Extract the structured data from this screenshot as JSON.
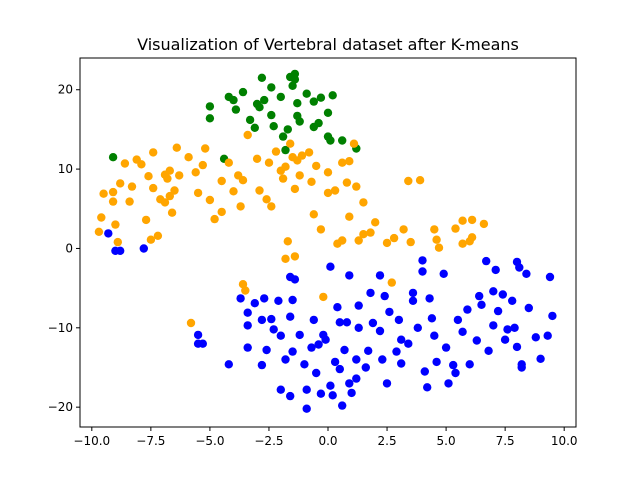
{
  "chart_data": {
    "type": "scatter",
    "title": "Visualization of Vertebral dataset after K-means",
    "xlabel": "",
    "ylabel": "",
    "xlim": [
      -10.5,
      10.5
    ],
    "ylim": [
      -22.5,
      24
    ],
    "x_ticks": [
      -10.0,
      -7.5,
      -5.0,
      -2.5,
      0.0,
      2.5,
      5.0,
      7.5,
      10.0
    ],
    "x_tick_labels": [
      "−10.0",
      "−7.5",
      "−5.0",
      "−2.5",
      "0.0",
      "2.5",
      "5.0",
      "7.5",
      "10.0"
    ],
    "y_ticks": [
      -20,
      -10,
      0,
      10,
      20
    ],
    "y_tick_labels": [
      "−20",
      "−10",
      "0",
      "10",
      "20"
    ],
    "grid": false,
    "legend": "none",
    "series": [
      {
        "color": "#008000",
        "points": [
          [
            -9.1,
            11.5
          ],
          [
            -5.0,
            17.9
          ],
          [
            -5.0,
            16.4
          ],
          [
            -4.4,
            11.3
          ],
          [
            -4.2,
            19.1
          ],
          [
            -4.0,
            18.7
          ],
          [
            -3.9,
            17.5
          ],
          [
            -3.6,
            19.7
          ],
          [
            -3.3,
            16.2
          ],
          [
            -3.1,
            15.2
          ],
          [
            -3.0,
            18.2
          ],
          [
            -2.9,
            17.8
          ],
          [
            -2.8,
            21.5
          ],
          [
            -2.7,
            18.7
          ],
          [
            -2.4,
            20.3
          ],
          [
            -2.4,
            16.8
          ],
          [
            -2.3,
            15.4
          ],
          [
            -2.0,
            19.1
          ],
          [
            -1.9,
            14.1
          ],
          [
            -1.8,
            12.4
          ],
          [
            -1.7,
            15.0
          ],
          [
            -1.6,
            21.6
          ],
          [
            -1.5,
            20.5
          ],
          [
            -1.4,
            21.3
          ],
          [
            -1.4,
            22.0
          ],
          [
            -1.3,
            18.3
          ],
          [
            -1.3,
            16.7
          ],
          [
            -1.2,
            16.0
          ],
          [
            -0.9,
            19.5
          ],
          [
            -0.6,
            18.5
          ],
          [
            -0.6,
            15.3
          ],
          [
            -0.4,
            15.8
          ],
          [
            -0.3,
            19.0
          ],
          [
            0.0,
            14.1
          ],
          [
            0.0,
            17.1
          ],
          [
            0.1,
            13.6
          ],
          [
            0.6,
            13.6
          ],
          [
            1.2,
            12.6
          ],
          [
            0.2,
            19.3
          ]
        ]
      },
      {
        "color": "#ffa500",
        "points": [
          [
            -9.7,
            2.1
          ],
          [
            -9.6,
            3.9
          ],
          [
            -9.5,
            6.9
          ],
          [
            -9.1,
            7.1
          ],
          [
            -9.1,
            5.9
          ],
          [
            -9.0,
            3.0
          ],
          [
            -8.9,
            0.8
          ],
          [
            -8.8,
            8.2
          ],
          [
            -8.6,
            10.7
          ],
          [
            -8.4,
            5.9
          ],
          [
            -8.3,
            7.8
          ],
          [
            -8.1,
            11.2
          ],
          [
            -7.9,
            10.6
          ],
          [
            -7.7,
            3.6
          ],
          [
            -7.6,
            9.1
          ],
          [
            -7.5,
            1.1
          ],
          [
            -7.4,
            7.6
          ],
          [
            -7.4,
            12.1
          ],
          [
            -7.2,
            1.6
          ],
          [
            -7.1,
            6.2
          ],
          [
            -6.9,
            5.8
          ],
          [
            -6.8,
            8.8
          ],
          [
            -6.7,
            9.8
          ],
          [
            -6.7,
            6.6
          ],
          [
            -6.6,
            4.5
          ],
          [
            -6.5,
            7.3
          ],
          [
            -6.4,
            12.7
          ],
          [
            -6.3,
            9.2
          ],
          [
            -5.9,
            11.5
          ],
          [
            -5.6,
            9.6
          ],
          [
            -5.5,
            7.0
          ],
          [
            -5.3,
            10.5
          ],
          [
            -5.2,
            12.6
          ],
          [
            -5.0,
            6.1
          ],
          [
            -4.8,
            3.7
          ],
          [
            -4.5,
            4.6
          ],
          [
            -4.5,
            8.5
          ],
          [
            -4.2,
            10.8
          ],
          [
            -4.0,
            7.2
          ],
          [
            -3.8,
            9.2
          ],
          [
            -3.7,
            5.3
          ],
          [
            -3.6,
            8.6
          ],
          [
            -3.4,
            14.3
          ],
          [
            -3.0,
            11.3
          ],
          [
            -2.9,
            7.3
          ],
          [
            -2.6,
            6.2
          ],
          [
            -2.5,
            10.8
          ],
          [
            -2.4,
            5.3
          ],
          [
            -2.2,
            12.2
          ],
          [
            -2.0,
            9.8
          ],
          [
            -1.9,
            8.8
          ],
          [
            -1.8,
            10.3
          ],
          [
            -1.7,
            0.9
          ],
          [
            -1.6,
            13.2
          ],
          [
            -1.5,
            11.5
          ],
          [
            -1.4,
            7.5
          ],
          [
            -1.3,
            11.1
          ],
          [
            -1.2,
            9.2
          ],
          [
            -1.1,
            11.7
          ],
          [
            -0.8,
            12.1
          ],
          [
            -0.7,
            8.4
          ],
          [
            -0.5,
            10.4
          ],
          [
            -0.3,
            2.4
          ],
          [
            0.0,
            9.6
          ],
          [
            0.0,
            7.0
          ],
          [
            0.3,
            7.3
          ],
          [
            0.4,
            0.6
          ],
          [
            0.6,
            1.0
          ],
          [
            0.6,
            10.8
          ],
          [
            0.8,
            8.3
          ],
          [
            0.9,
            4.0
          ],
          [
            0.9,
            11.0
          ],
          [
            1.1,
            13.2
          ],
          [
            1.2,
            7.8
          ],
          [
            1.3,
            1.0
          ],
          [
            1.5,
            5.8
          ],
          [
            1.5,
            1.8
          ],
          [
            1.8,
            2.0
          ],
          [
            2.0,
            3.3
          ],
          [
            2.5,
            0.7
          ],
          [
            2.8,
            1.3
          ],
          [
            3.2,
            2.4
          ],
          [
            3.4,
            8.5
          ],
          [
            3.5,
            0.8
          ],
          [
            3.9,
            8.6
          ],
          [
            4.5,
            2.4
          ],
          [
            4.6,
            1.1
          ],
          [
            4.7,
            0.1
          ],
          [
            5.4,
            2.5
          ],
          [
            5.7,
            3.5
          ],
          [
            5.7,
            0.6
          ],
          [
            6.0,
            0.9
          ],
          [
            6.1,
            3.6
          ],
          [
            6.1,
            1.4
          ],
          [
            6.6,
            3.1
          ],
          [
            -5.8,
            -9.4
          ],
          [
            -3.6,
            -4.5
          ],
          [
            -3.5,
            -5.3
          ],
          [
            -1.8,
            -1.3
          ],
          [
            -1.4,
            -1.0
          ],
          [
            -0.2,
            -6.1
          ],
          [
            2.7,
            -4.3
          ],
          [
            -0.6,
            4.3
          ],
          [
            -6.9,
            9.3
          ]
        ]
      },
      {
        "color": "#0000ff",
        "points": [
          [
            -9.3,
            1.9
          ],
          [
            -9.0,
            -0.3
          ],
          [
            -8.8,
            -0.3
          ],
          [
            -7.8,
            0.0
          ],
          [
            -5.5,
            -10.9
          ],
          [
            -5.5,
            -12.0
          ],
          [
            -5.3,
            -12.0
          ],
          [
            -4.2,
            -14.6
          ],
          [
            -3.7,
            -6.3
          ],
          [
            -3.4,
            -8.1
          ],
          [
            -3.4,
            -12.5
          ],
          [
            -3.1,
            -6.9
          ],
          [
            -2.8,
            -9.0
          ],
          [
            -2.8,
            -14.7
          ],
          [
            -2.7,
            -6.3
          ],
          [
            -2.6,
            -12.8
          ],
          [
            -2.4,
            -8.9
          ],
          [
            -2.3,
            -10.2
          ],
          [
            -2.1,
            -6.6
          ],
          [
            -2.0,
            -17.8
          ],
          [
            -2.0,
            -11.0
          ],
          [
            -1.8,
            -14.0
          ],
          [
            -1.6,
            -8.6
          ],
          [
            -1.6,
            -18.6
          ],
          [
            -1.6,
            -3.6
          ],
          [
            -1.5,
            -13.0
          ],
          [
            -1.5,
            -6.5
          ],
          [
            -1.4,
            -3.9
          ],
          [
            -1.2,
            -10.9
          ],
          [
            -1.0,
            -14.6
          ],
          [
            -0.9,
            -20.2
          ],
          [
            -0.9,
            -17.8
          ],
          [
            -0.7,
            -12.5
          ],
          [
            -0.6,
            -9.0
          ],
          [
            -0.5,
            -15.7
          ],
          [
            -0.4,
            -12.1
          ],
          [
            -0.3,
            -18.3
          ],
          [
            -0.2,
            -10.9
          ],
          [
            -0.1,
            -11.5
          ],
          [
            0.1,
            -17.3
          ],
          [
            0.1,
            -2.3
          ],
          [
            0.2,
            -18.5
          ],
          [
            0.3,
            -14.3
          ],
          [
            0.4,
            -7.4
          ],
          [
            0.5,
            -9.3
          ],
          [
            0.5,
            -15.2
          ],
          [
            0.6,
            -19.8
          ],
          [
            0.7,
            -12.8
          ],
          [
            0.8,
            -9.3
          ],
          [
            0.9,
            -17.0
          ],
          [
            0.9,
            -3.4
          ],
          [
            1.0,
            -18.2
          ],
          [
            1.2,
            -16.4
          ],
          [
            1.2,
            -14.0
          ],
          [
            1.3,
            -7.2
          ],
          [
            1.3,
            -10.0
          ],
          [
            1.6,
            -15.0
          ],
          [
            1.7,
            -12.9
          ],
          [
            1.8,
            -5.6
          ],
          [
            1.9,
            -9.4
          ],
          [
            2.2,
            -10.4
          ],
          [
            2.3,
            -14.0
          ],
          [
            2.5,
            -17.0
          ],
          [
            2.4,
            -6.0
          ],
          [
            2.6,
            -8.0
          ],
          [
            2.9,
            -13.0
          ],
          [
            3.0,
            -9.0
          ],
          [
            3.1,
            -11.5
          ],
          [
            3.1,
            -14.5
          ],
          [
            3.4,
            -12.0
          ],
          [
            3.6,
            -5.6
          ],
          [
            3.6,
            -6.6
          ],
          [
            3.8,
            -10.0
          ],
          [
            4.0,
            -1.5
          ],
          [
            4.0,
            -2.9
          ],
          [
            4.1,
            -15.5
          ],
          [
            4.2,
            -17.5
          ],
          [
            4.3,
            -6.3
          ],
          [
            4.4,
            -8.8
          ],
          [
            4.5,
            -11.0
          ],
          [
            4.6,
            -14.3
          ],
          [
            4.9,
            -3.2
          ],
          [
            5.0,
            -12.5
          ],
          [
            5.1,
            -17.0
          ],
          [
            5.3,
            -14.7
          ],
          [
            5.4,
            -15.7
          ],
          [
            5.5,
            -9.0
          ],
          [
            5.7,
            -10.5
          ],
          [
            5.9,
            -7.7
          ],
          [
            6.0,
            -14.6
          ],
          [
            6.3,
            -11.6
          ],
          [
            6.4,
            -6.0
          ],
          [
            6.5,
            -7.1
          ],
          [
            6.7,
            -1.6
          ],
          [
            6.8,
            -12.9
          ],
          [
            7.0,
            -5.4
          ],
          [
            7.0,
            -9.7
          ],
          [
            7.1,
            -2.7
          ],
          [
            7.2,
            -7.9
          ],
          [
            7.4,
            -5.8
          ],
          [
            7.5,
            -11.5
          ],
          [
            7.8,
            -6.6
          ],
          [
            7.9,
            -10.0
          ],
          [
            8.0,
            -1.7
          ],
          [
            8.0,
            -12.4
          ],
          [
            8.1,
            -2.4
          ],
          [
            8.2,
            -14.6
          ],
          [
            8.2,
            -15.0
          ],
          [
            8.4,
            -3.2
          ],
          [
            8.5,
            -7.5
          ],
          [
            8.8,
            -11.2
          ],
          [
            9.0,
            -13.9
          ],
          [
            9.3,
            -11.0
          ],
          [
            9.4,
            -3.6
          ],
          [
            9.5,
            -8.5
          ],
          [
            7.6,
            -10.2
          ],
          [
            -3.4,
            -9.7
          ],
          [
            2.2,
            -3.4
          ]
        ]
      }
    ]
  }
}
